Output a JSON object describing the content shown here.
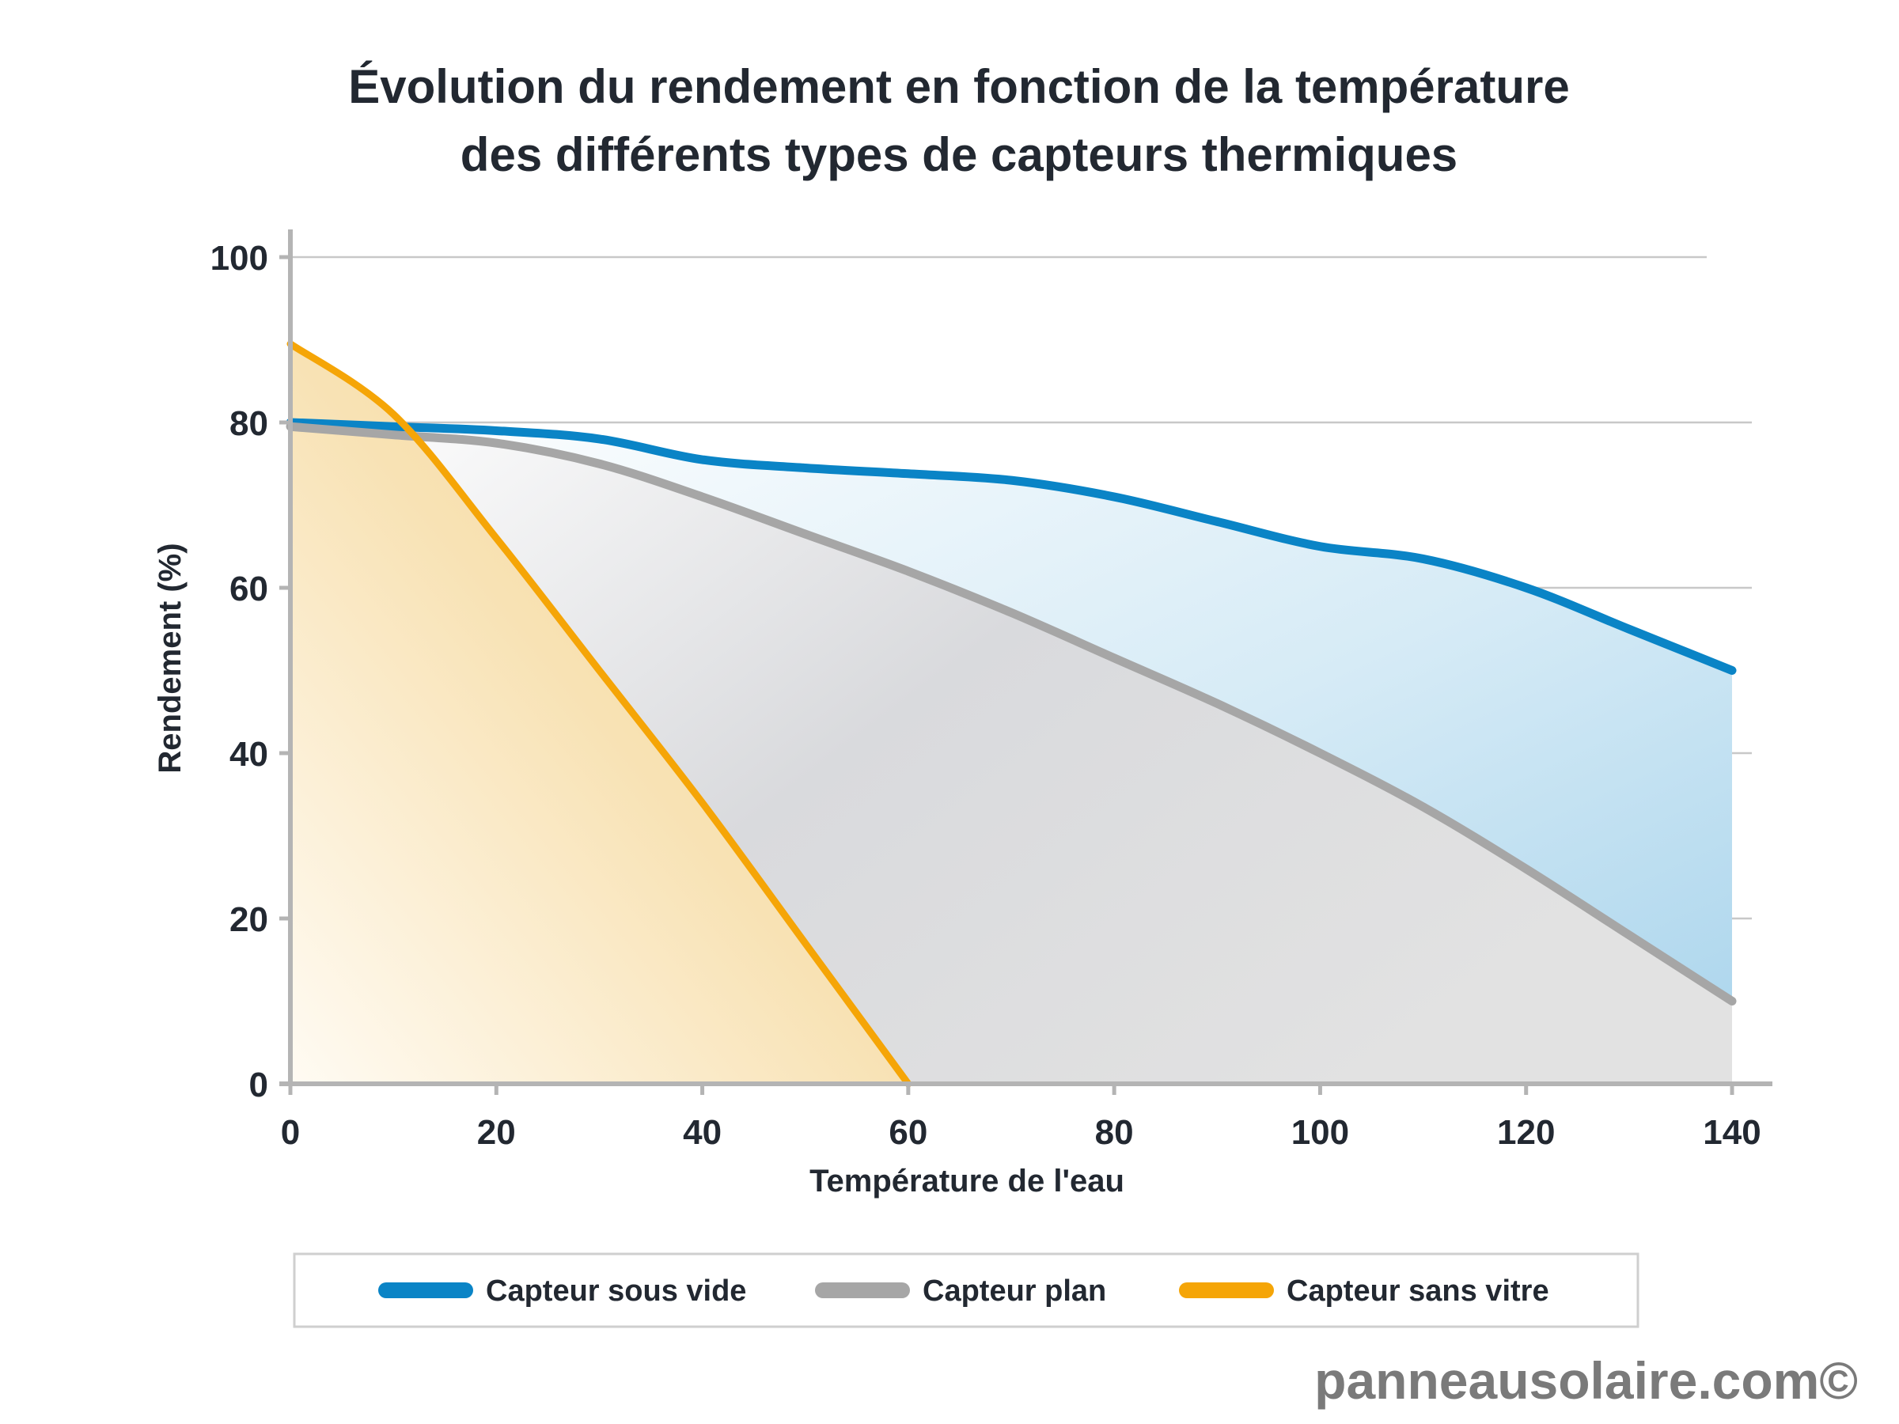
{
  "chart_data": {
    "type": "area",
    "title": [
      "Évolution du rendement en fonction de la température",
      "des différents types de capteurs thermiques"
    ],
    "xlabel": "Température de l'eau",
    "ylabel": "Rendement (%)",
    "xlim": [
      0,
      140
    ],
    "ylim": [
      0,
      100
    ],
    "xticks": [
      0,
      20,
      40,
      60,
      80,
      100,
      120,
      140
    ],
    "yticks": [
      0,
      20,
      40,
      60,
      80,
      100
    ],
    "grid": "horizontal",
    "legend_position": "bottom",
    "series": [
      {
        "name": "Capteur sous vide",
        "color": "#0a84c6",
        "x": [
          0,
          10,
          20,
          30,
          40,
          50,
          60,
          70,
          80,
          90,
          100,
          110,
          120,
          130,
          140
        ],
        "y": [
          80,
          79.5,
          79,
          78,
          75.5,
          74.5,
          73.8,
          73,
          71,
          68,
          65,
          63.5,
          60,
          55,
          50
        ]
      },
      {
        "name": "Capteur plan",
        "color": "#a6a6a6",
        "x": [
          0,
          10,
          20,
          30,
          40,
          50,
          60,
          70,
          80,
          90,
          100,
          110,
          120,
          130,
          140
        ],
        "y": [
          79.5,
          78.5,
          77.5,
          75,
          71,
          66.5,
          62,
          57,
          51.5,
          46,
          40,
          33.5,
          26,
          18,
          10
        ]
      },
      {
        "name": "Capteur sans vitre",
        "color": "#f5a507",
        "x": [
          0,
          10,
          20,
          30,
          40,
          50,
          60
        ],
        "y": [
          89.5,
          81,
          66,
          50,
          34,
          17,
          0
        ]
      }
    ]
  },
  "watermark": "panneausolaire.com©"
}
